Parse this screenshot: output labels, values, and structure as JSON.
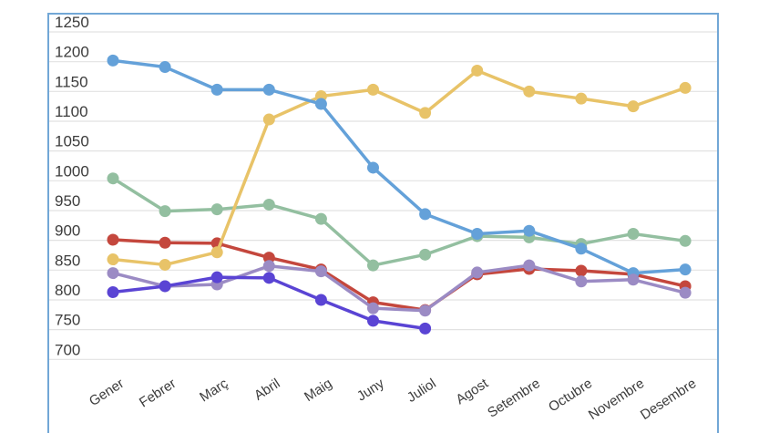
{
  "chart_data": {
    "type": "line",
    "title": "",
    "xlabel": "",
    "ylabel": "",
    "categories": [
      "Gener",
      "Febrer",
      "Març",
      "Abril",
      "Maig",
      "Juny",
      "Juliol",
      "Agost",
      "Setembre",
      "Octubre",
      "Novembre",
      "Desembre"
    ],
    "yticks": [
      1250,
      1200,
      1150,
      1100,
      1050,
      1000,
      950,
      900,
      850,
      800,
      750,
      700
    ],
    "ylim": [
      700,
      1250
    ],
    "grid": true,
    "legend": "none",
    "series": [
      {
        "name": "blue",
        "color": "#64a1d9",
        "values": [
          1202,
          1191,
          1153,
          1153,
          1129,
          1022,
          944,
          911,
          916,
          886,
          845,
          851
        ]
      },
      {
        "name": "yellow",
        "color": "#e8c368",
        "values": [
          868,
          859,
          880,
          1103,
          1142,
          1153,
          1114,
          1185,
          1150,
          1138,
          1125,
          1156
        ]
      },
      {
        "name": "green",
        "color": "#93bfa0",
        "values": [
          1004,
          949,
          952,
          960,
          936,
          858,
          876,
          907,
          905,
          894,
          911,
          899
        ]
      },
      {
        "name": "red",
        "color": "#c4473d",
        "values": [
          901,
          896,
          895,
          871,
          851,
          796,
          783,
          843,
          852,
          849,
          843,
          823
        ]
      },
      {
        "name": "purple",
        "color": "#9b8bc4",
        "values": [
          845,
          823,
          826,
          857,
          848,
          786,
          782,
          846,
          858,
          831,
          834,
          812
        ]
      },
      {
        "name": "indigo",
        "color": "#5a44d4",
        "values": [
          813,
          823,
          838,
          837,
          800,
          765,
          752
        ]
      }
    ],
    "draw_order": [
      "green",
      "red",
      "yellow",
      "blue",
      "purple",
      "indigo"
    ]
  },
  "style": {
    "frame_border_color": "#72a7d6",
    "gridline_color": "#e2e2e2",
    "tick_label_color": "#3c3c3c",
    "background_color": "#ffffff"
  }
}
